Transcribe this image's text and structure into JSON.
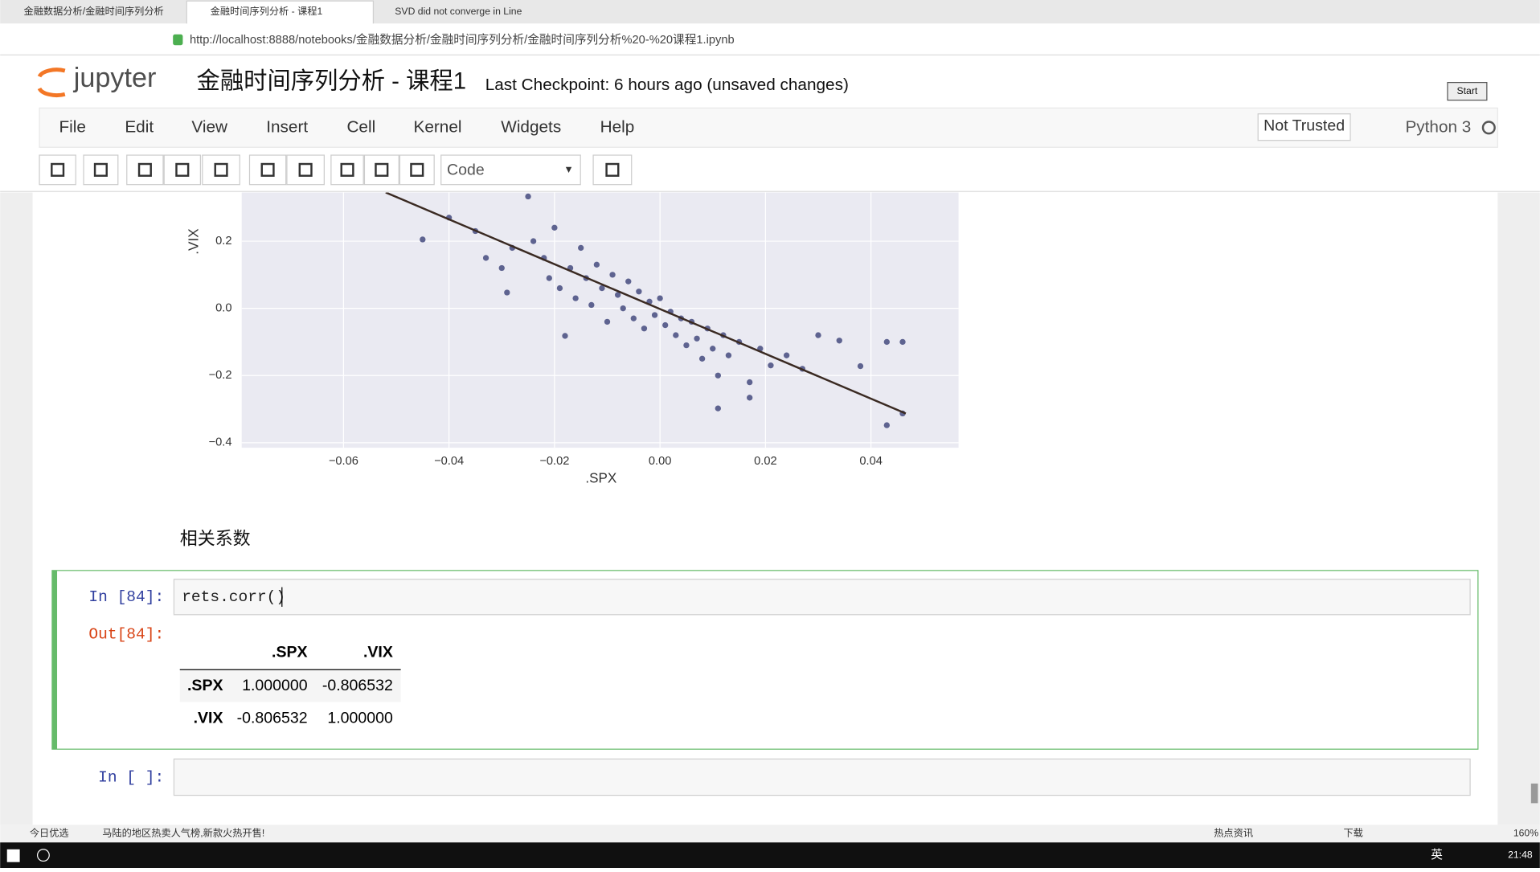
{
  "browser": {
    "tabs": [
      "金融数据分析/金融时间序列分析",
      "金融时间序列分析 - 课程1",
      "SVD did not converge in Line"
    ],
    "url": "http://localhost:8888/notebooks/金融数据分析/金融时间序列分析/金融时间序列分析%20-%20课程1.ipynb"
  },
  "header": {
    "logo": "jupyter",
    "title": "金融时间序列分析 - 课程1",
    "checkpoint": "Last Checkpoint: 6 hours ago (unsaved changes)",
    "start": "Start"
  },
  "menu": [
    "File",
    "Edit",
    "View",
    "Insert",
    "Cell",
    "Kernel",
    "Widgets",
    "Help"
  ],
  "trusted": "Not Trusted",
  "kernel": "Python 3",
  "cell_type": "Code",
  "chart_data": {
    "type": "scatter",
    "xlabel": ".SPX",
    "ylabel": ".VIX",
    "color": "#5e6390",
    "line_color": "#3a2a22",
    "grid": true,
    "xlim": [
      -0.0793,
      0.0566
    ],
    "ylim": [
      -0.415,
      0.345
    ],
    "xticks": [
      {
        "value": -0.06,
        "label": "−0.06"
      },
      {
        "value": -0.04,
        "label": "−0.04"
      },
      {
        "value": -0.02,
        "label": "−0.02"
      },
      {
        "value": 0,
        "label": "0.00"
      },
      0.02,
      0.04
    ],
    "yticks": [
      {
        "value": -0.4,
        "label": "−0.4"
      },
      {
        "value": -0.2,
        "label": "−0.2"
      },
      {
        "value": 0,
        "label": "0.0"
      },
      0.2
    ],
    "x": [
      -0.045,
      -0.04,
      -0.035,
      -0.033,
      -0.03,
      -0.029,
      -0.028,
      -0.025,
      -0.024,
      -0.022,
      -0.021,
      -0.02,
      -0.019,
      -0.018,
      -0.017,
      -0.016,
      -0.015,
      -0.014,
      -0.013,
      -0.012,
      -0.011,
      -0.01,
      -0.009,
      -0.008,
      -0.007,
      -0.006,
      -0.005,
      -0.004,
      -0.003,
      -0.002,
      -0.001,
      0.0,
      0.001,
      0.002,
      0.003,
      0.004,
      0.005,
      0.006,
      0.007,
      0.008,
      0.009,
      0.01,
      0.011,
      0.012,
      0.013,
      0.015,
      0.017,
      0.019,
      0.021,
      0.024,
      0.027,
      0.03,
      0.034,
      0.038,
      0.043,
      0.046,
      0.043,
      0.011,
      0.017,
      0.046
    ],
    "y": [
      0.205,
      0.27,
      0.23,
      0.15,
      0.12,
      0.047,
      0.18,
      0.333,
      0.2,
      0.15,
      0.09,
      0.24,
      0.06,
      -0.082,
      0.12,
      0.03,
      0.18,
      0.09,
      0.01,
      0.13,
      0.06,
      -0.04,
      0.1,
      0.04,
      0.0,
      0.08,
      -0.03,
      0.05,
      -0.06,
      0.02,
      -0.02,
      0.03,
      -0.05,
      -0.01,
      -0.08,
      -0.03,
      -0.11,
      -0.04,
      -0.09,
      -0.15,
      -0.06,
      -0.12,
      -0.2,
      -0.08,
      -0.14,
      -0.1,
      -0.22,
      -0.12,
      -0.17,
      -0.14,
      -0.18,
      -0.08,
      -0.096,
      -0.172,
      -0.1,
      -0.1,
      -0.348,
      -0.298,
      -0.266,
      -0.313
    ],
    "line_x": [
      -0.052,
      0.0466
    ],
    "line_y": [
      0.345,
      -0.313
    ]
  },
  "markdown": "相关系数",
  "cell": {
    "prompt_in": "In [84]:",
    "code": "rets.corr()",
    "prompt_out": "Out[84]:",
    "table": {
      "columns": [
        ".SPX",
        ".VIX"
      ],
      "rows": [
        {
          "label": ".SPX",
          "values": [
            "1.000000",
            "-0.806532"
          ]
        },
        {
          "label": ".VIX",
          "values": [
            "-0.806532",
            "1.000000"
          ]
        }
      ]
    }
  },
  "empty_cell": {
    "prompt_in": "In [ ]:"
  },
  "statusbar": {
    "left": "今日优选",
    "news": "马陆的地区热卖人气榜,新款火热开售!",
    "hot": "热点资讯",
    "download": "下载",
    "zoom": "160%"
  },
  "taskbar": {
    "ime": "英",
    "time": "21:48"
  }
}
